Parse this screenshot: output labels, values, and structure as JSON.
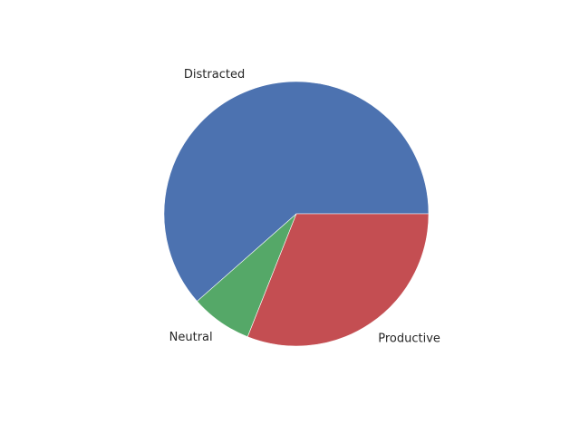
{
  "chart_data": {
    "type": "pie",
    "title": "",
    "slices": [
      {
        "label": "Distracted",
        "value": 61.5,
        "color": "#4c72b0"
      },
      {
        "label": "Neutral",
        "value": 7.5,
        "color": "#55a868"
      },
      {
        "label": "Productive",
        "value": 31.0,
        "color": "#c44e52"
      }
    ],
    "start_angle": 0,
    "direction": "counterclockwise",
    "legend": "none"
  }
}
